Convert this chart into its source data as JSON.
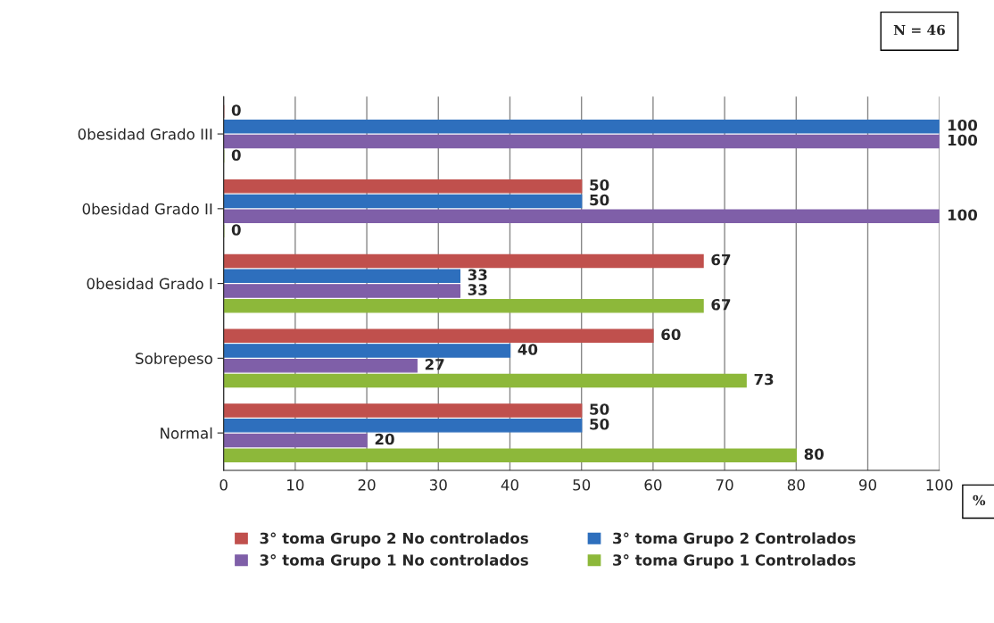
{
  "chart_data": {
    "type": "bar",
    "orientation": "horizontal",
    "categories": [
      "0besidad Grado III",
      "0besidad Grado II",
      "0besidad Grado I",
      "Sobrepeso",
      "Normal"
    ],
    "series": [
      {
        "name": "3° toma Grupo 2 No controlados",
        "color": "#c0504d",
        "values": [
          0,
          50,
          67,
          60,
          50
        ]
      },
      {
        "name": "3° toma Grupo 2 Controlados",
        "color": "#2e6fbd",
        "values": [
          100,
          50,
          33,
          40,
          50
        ]
      },
      {
        "name": "3° toma Grupo 1 No controlados",
        "color": "#7f5fa8",
        "values": [
          100,
          100,
          33,
          27,
          20
        ]
      },
      {
        "name": "3° toma Grupo 1 Controlados",
        "color": "#8db83a",
        "values": [
          0,
          0,
          67,
          73,
          80
        ]
      }
    ],
    "xlim": [
      0,
      100
    ],
    "xticks": [
      0,
      10,
      20,
      30,
      40,
      50,
      60,
      70,
      80,
      90,
      100
    ],
    "grid": "x",
    "legend": "bottom",
    "data_labels": true,
    "annotations": [
      "N = 46",
      "%"
    ]
  }
}
